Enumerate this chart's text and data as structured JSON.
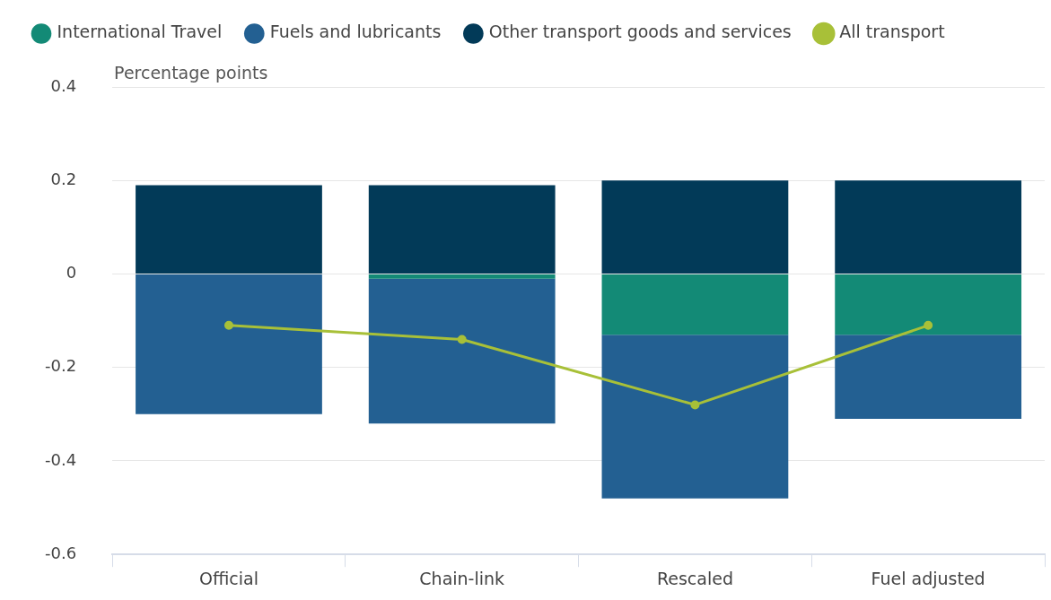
{
  "chart_data": {
    "type": "bar",
    "stacked": true,
    "ylabel": "Percentage points",
    "categories": [
      "Official",
      "Chain-link",
      "Rescaled",
      "Fuel adjusted"
    ],
    "series": [
      {
        "name": "International Travel",
        "color": "#138a76",
        "values": [
          0,
          -0.01,
          -0.13,
          -0.13
        ]
      },
      {
        "name": "Fuels and lubricants",
        "color": "#236092",
        "values": [
          -0.3,
          -0.31,
          -0.35,
          -0.18
        ]
      },
      {
        "name": "Other transport goods and services",
        "color": "#023a58",
        "values": [
          0.19,
          0.19,
          0.2,
          0.2
        ]
      },
      {
        "name": "All transport",
        "type": "line",
        "color": "#a8c038",
        "values": [
          -0.11,
          -0.14,
          -0.28,
          -0.11
        ]
      }
    ],
    "ylim": [
      -0.6,
      0.4
    ],
    "yticks": [
      -0.6,
      -0.4,
      -0.2,
      0,
      0.2,
      0.4
    ],
    "grid": "y",
    "legend": "top left",
    "marker": "circle",
    "line_style": "solid"
  }
}
